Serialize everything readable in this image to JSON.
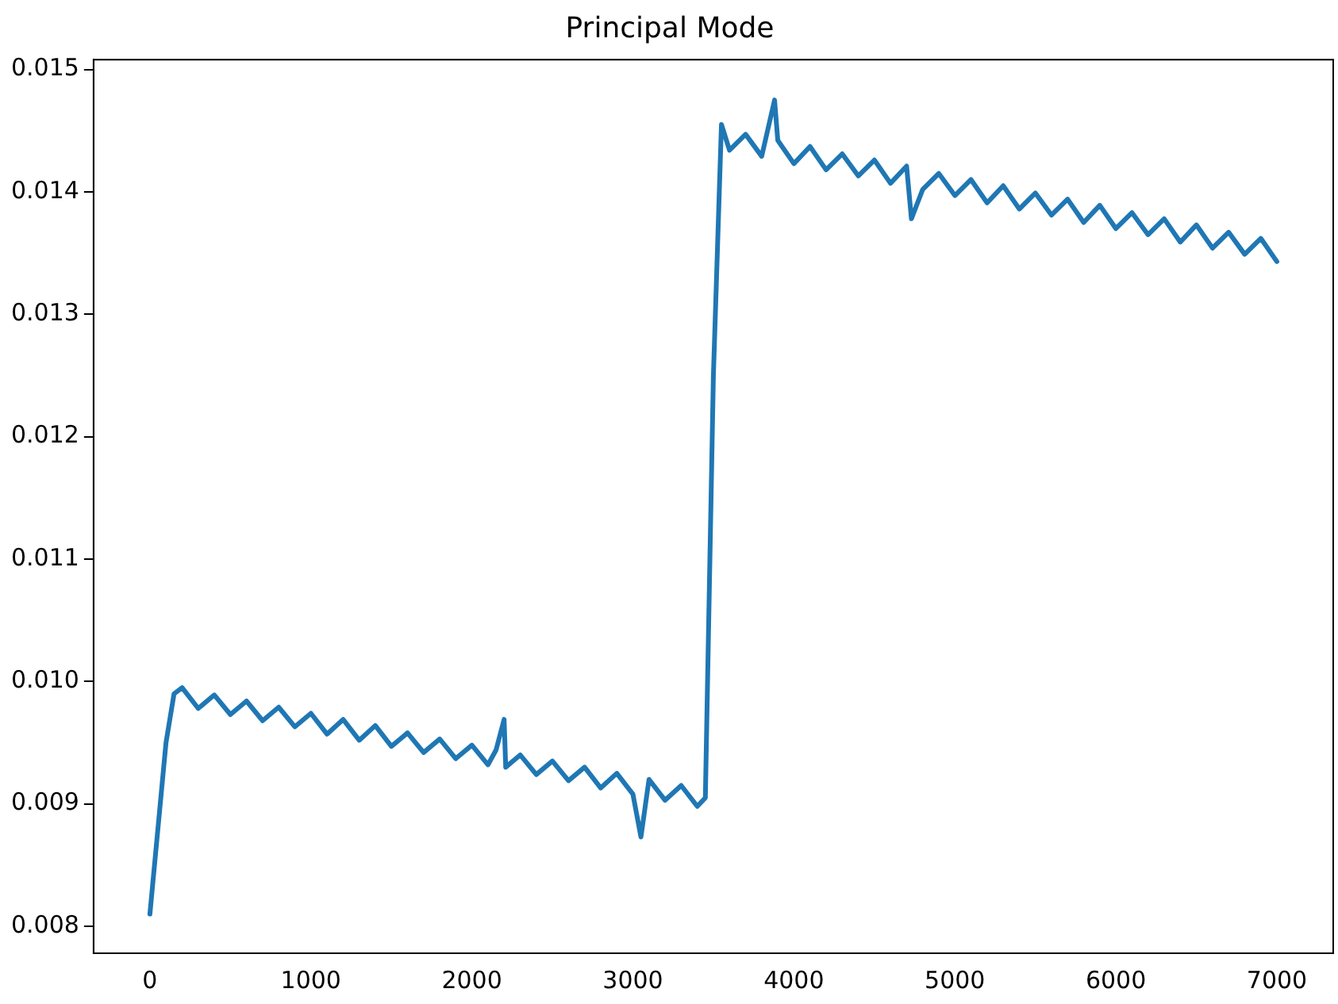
{
  "chart_data": {
    "type": "line",
    "title": "Principal Mode",
    "series": [
      {
        "color": "#1f77b4",
        "x": [
          0,
          50,
          100,
          150,
          200,
          300,
          400,
          500,
          600,
          700,
          800,
          900,
          1000,
          1100,
          1200,
          1300,
          1400,
          1500,
          1600,
          1700,
          1800,
          1900,
          2000,
          2100,
          2150,
          2200,
          2210,
          2300,
          2400,
          2500,
          2600,
          2700,
          2800,
          2900,
          3000,
          3050,
          3100,
          3200,
          3300,
          3400,
          3450,
          3500,
          3550,
          3600,
          3700,
          3800,
          3880,
          3900,
          4000,
          4100,
          4200,
          4300,
          4400,
          4500,
          4600,
          4700,
          4730,
          4800,
          4900,
          5000,
          5100,
          5200,
          5300,
          5400,
          5500,
          5600,
          5700,
          5800,
          5900,
          6000,
          6100,
          6200,
          6300,
          6400,
          6500,
          6600,
          6700,
          6800,
          6900,
          7000
        ],
        "values": [
          0.0081,
          0.0088,
          0.0095,
          0.0099,
          0.00995,
          0.00978,
          0.00989,
          0.00973,
          0.00984,
          0.00968,
          0.00979,
          0.00963,
          0.00974,
          0.00957,
          0.00969,
          0.00952,
          0.00964,
          0.00947,
          0.00958,
          0.00942,
          0.00953,
          0.00937,
          0.00948,
          0.00932,
          0.00944,
          0.00969,
          0.0093,
          0.0094,
          0.00924,
          0.00935,
          0.00919,
          0.0093,
          0.00913,
          0.00925,
          0.00908,
          0.00873,
          0.0092,
          0.00903,
          0.00915,
          0.00898,
          0.00905,
          0.0125,
          0.01455,
          0.01434,
          0.01447,
          0.01429,
          0.01475,
          0.01442,
          0.01423,
          0.01437,
          0.01418,
          0.01431,
          0.01413,
          0.01426,
          0.01407,
          0.01421,
          0.01378,
          0.01402,
          0.01415,
          0.01397,
          0.0141,
          0.01391,
          0.01405,
          0.01386,
          0.01399,
          0.01381,
          0.01394,
          0.01375,
          0.01389,
          0.0137,
          0.01383,
          0.01365,
          0.01378,
          0.01359,
          0.01373,
          0.01354,
          0.01367,
          0.01349,
          0.01362,
          0.01343
        ]
      }
    ],
    "xlim": [
      -350,
      7350
    ],
    "xticks": [
      0,
      1000,
      2000,
      3000,
      4000,
      5000,
      6000,
      7000
    ],
    "ylim": [
      0.00778,
      0.01508
    ],
    "yticks": [
      0.008,
      0.009,
      {
        "value": 0.01,
        "label": "0.010"
      },
      0.011,
      0.012,
      0.013,
      0.014,
      0.015
    ],
    "grid": false,
    "legend": false,
    "marker": "none",
    "line_style": "solid"
  }
}
